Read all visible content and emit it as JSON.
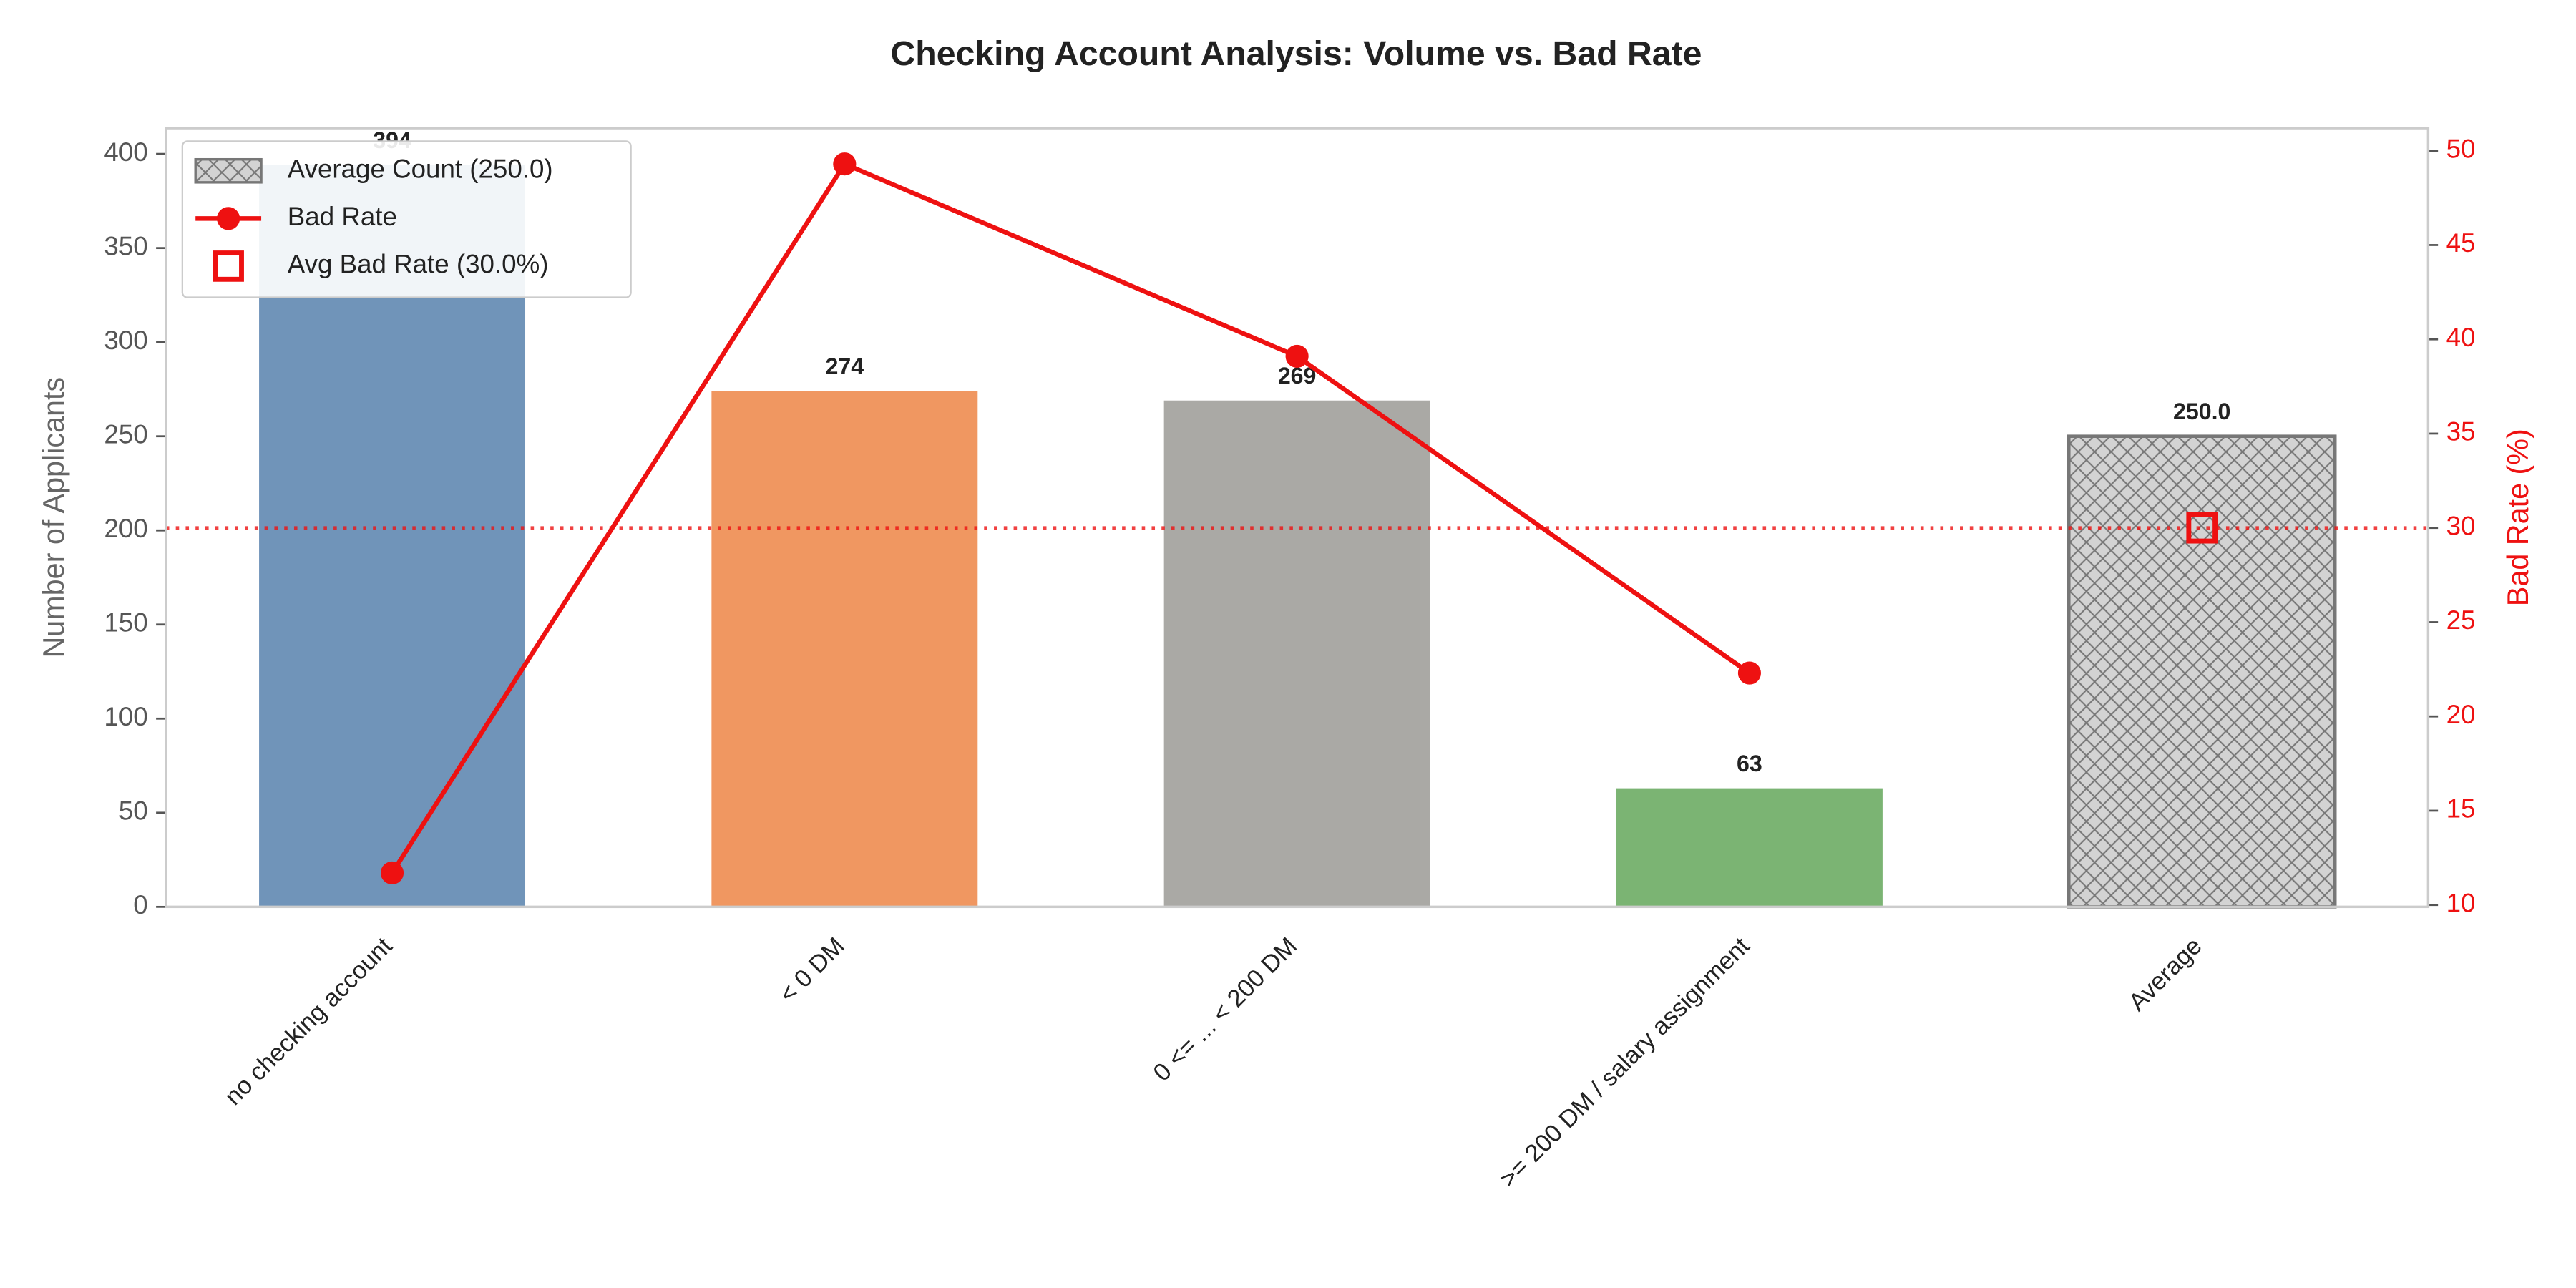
{
  "chart_data": {
    "type": "bar",
    "title": "Checking Account Analysis: Volume vs. Bad Rate",
    "ylabel": "Number of Applicants",
    "y2label": "Bad Rate (%)",
    "categories": [
      "no checking account",
      "< 0 DM",
      "0 <= ... < 200 DM",
      ">= 200 DM / salary assignment",
      "Average"
    ],
    "series": [
      {
        "name": "Average Count (250.0)",
        "type": "bar",
        "colors": [
          "#7094b9",
          "#f09761",
          "#aaa9a5",
          "#7bb473",
          "#d3d3d3"
        ],
        "values": [
          394,
          274,
          269,
          63,
          250.0
        ],
        "value_labels": [
          "394",
          "274",
          "269",
          "63",
          "250.0"
        ]
      },
      {
        "name": "Bad Rate",
        "type": "line",
        "axis": "y2",
        "color": "#ee1111",
        "values": [
          11.7,
          49.3,
          39.1,
          22.3,
          null
        ]
      },
      {
        "name": "Avg Bad Rate (30.0%)",
        "type": "marker",
        "axis": "y2",
        "color": "#ee1111",
        "values": [
          null,
          null,
          null,
          null,
          30.0
        ]
      }
    ],
    "ylim": [
      0,
      413.7
    ],
    "yticks": [
      0,
      50,
      100,
      150,
      200,
      250,
      300,
      350,
      400
    ],
    "y2lim": [
      9.9,
      51.2
    ],
    "y2ticks": [
      10,
      15,
      20,
      25,
      30,
      35,
      40,
      45,
      50
    ],
    "legend": "upper left",
    "grid": false
  }
}
